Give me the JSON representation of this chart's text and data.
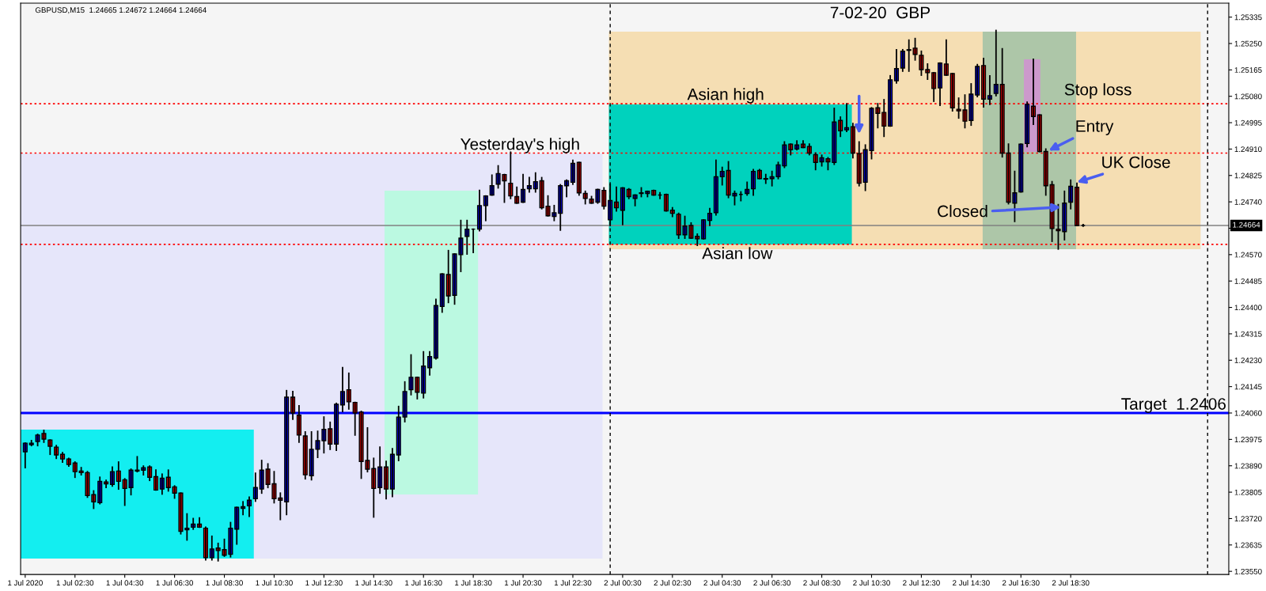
{
  "chart_data": {
    "type": "candlestick",
    "title": "7-02-20  GBP",
    "x": [
      "2020-07-01T00:30",
      "2020-07-01T00:45",
      "2020-07-01T01:00",
      "2020-07-01T01:15",
      "2020-07-01T01:30",
      "2020-07-01T01:45",
      "2020-07-01T02:00",
      "2020-07-01T02:15",
      "2020-07-01T02:30",
      "2020-07-01T02:45",
      "2020-07-01T03:00",
      "2020-07-01T03:15",
      "2020-07-01T03:30",
      "2020-07-01T03:45",
      "2020-07-01T04:00",
      "2020-07-01T04:15",
      "2020-07-01T04:30",
      "2020-07-01T04:45",
      "2020-07-01T05:00",
      "2020-07-01T05:15",
      "2020-07-01T05:30",
      "2020-07-01T05:45",
      "2020-07-01T06:00",
      "2020-07-01T06:15",
      "2020-07-01T06:30",
      "2020-07-01T06:45",
      "2020-07-01T07:00",
      "2020-07-01T07:15",
      "2020-07-01T07:30",
      "2020-07-01T07:45",
      "2020-07-01T08:00",
      "2020-07-01T08:15",
      "2020-07-01T08:30",
      "2020-07-01T08:45",
      "2020-07-01T09:00",
      "2020-07-01T09:15",
      "2020-07-01T09:30",
      "2020-07-01T09:45",
      "2020-07-01T10:00",
      "2020-07-01T10:15",
      "2020-07-01T10:30",
      "2020-07-01T10:45",
      "2020-07-01T11:00",
      "2020-07-01T11:15",
      "2020-07-01T11:30",
      "2020-07-01T11:45",
      "2020-07-01T12:00",
      "2020-07-01T12:15",
      "2020-07-01T12:30",
      "2020-07-01T12:45",
      "2020-07-01T13:00",
      "2020-07-01T13:15",
      "2020-07-01T13:30",
      "2020-07-01T13:45",
      "2020-07-01T14:00",
      "2020-07-01T14:15",
      "2020-07-01T14:30",
      "2020-07-01T14:45",
      "2020-07-01T15:00",
      "2020-07-01T15:15",
      "2020-07-01T15:30",
      "2020-07-01T15:45",
      "2020-07-01T16:00",
      "2020-07-01T16:15",
      "2020-07-01T16:30",
      "2020-07-01T16:45",
      "2020-07-01T17:00",
      "2020-07-01T17:15",
      "2020-07-01T17:30",
      "2020-07-01T17:45",
      "2020-07-01T18:00",
      "2020-07-01T18:15",
      "2020-07-01T18:30",
      "2020-07-01T18:45",
      "2020-07-01T19:00",
      "2020-07-01T19:15",
      "2020-07-01T19:30",
      "2020-07-01T19:45",
      "2020-07-01T20:00",
      "2020-07-01T20:15",
      "2020-07-01T20:30",
      "2020-07-01T20:45",
      "2020-07-01T21:00",
      "2020-07-01T21:15",
      "2020-07-01T21:30",
      "2020-07-01T21:45",
      "2020-07-01T22:00",
      "2020-07-01T22:15",
      "2020-07-01T22:30",
      "2020-07-01T22:45",
      "2020-07-01T23:00",
      "2020-07-01T23:15",
      "2020-07-01T23:30",
      "2020-07-01T23:45",
      "2020-07-02T00:00",
      "2020-07-02T00:15",
      "2020-07-02T00:30",
      "2020-07-02T00:45",
      "2020-07-02T01:00",
      "2020-07-02T01:15",
      "2020-07-02T01:30",
      "2020-07-02T01:45",
      "2020-07-02T02:00",
      "2020-07-02T02:15",
      "2020-07-02T02:30",
      "2020-07-02T02:45",
      "2020-07-02T03:00",
      "2020-07-02T03:15",
      "2020-07-02T03:30",
      "2020-07-02T03:45",
      "2020-07-02T04:00",
      "2020-07-02T04:15",
      "2020-07-02T04:30",
      "2020-07-02T04:45",
      "2020-07-02T05:00",
      "2020-07-02T05:15",
      "2020-07-02T05:30",
      "2020-07-02T05:45",
      "2020-07-02T06:00",
      "2020-07-02T06:15",
      "2020-07-02T06:30",
      "2020-07-02T06:45",
      "2020-07-02T07:00",
      "2020-07-02T07:15",
      "2020-07-02T07:30",
      "2020-07-02T07:45",
      "2020-07-02T08:00",
      "2020-07-02T08:15",
      "2020-07-02T08:30",
      "2020-07-02T08:45",
      "2020-07-02T09:00",
      "2020-07-02T09:15",
      "2020-07-02T09:30",
      "2020-07-02T09:45",
      "2020-07-02T10:00",
      "2020-07-02T10:15",
      "2020-07-02T10:30",
      "2020-07-02T10:45",
      "2020-07-02T11:00",
      "2020-07-02T11:15",
      "2020-07-02T11:30",
      "2020-07-02T11:45",
      "2020-07-02T12:00",
      "2020-07-02T12:15",
      "2020-07-02T12:30",
      "2020-07-02T12:45",
      "2020-07-02T13:00",
      "2020-07-02T13:15",
      "2020-07-02T13:30",
      "2020-07-02T13:45",
      "2020-07-02T14:00",
      "2020-07-02T14:15",
      "2020-07-02T14:30",
      "2020-07-02T14:45",
      "2020-07-02T15:00",
      "2020-07-02T15:15",
      "2020-07-02T15:30",
      "2020-07-02T15:45",
      "2020-07-02T16:00",
      "2020-07-02T16:15",
      "2020-07-02T16:30",
      "2020-07-02T16:45",
      "2020-07-02T17:00",
      "2020-07-02T17:15",
      "2020-07-02T17:30",
      "2020-07-02T17:45",
      "2020-07-02T18:00",
      "2020-07-02T18:15",
      "2020-07-02T18:30",
      "2020-07-02T18:45",
      "2020-07-02T19:00"
    ],
    "ohlc": [
      [
        1.23935,
        1.23963,
        1.23884,
        1.23963
      ],
      [
        1.23958,
        1.23971,
        1.23955,
        1.23963
      ],
      [
        1.23968,
        1.23991,
        1.23955,
        1.23989
      ],
      [
        1.23994,
        1.24004,
        1.23966,
        1.23976
      ],
      [
        1.23973,
        1.23973,
        1.23927,
        1.23953
      ],
      [
        1.2395,
        1.23955,
        1.23914,
        1.23925
      ],
      [
        1.23927,
        1.23932,
        1.23902,
        1.23912
      ],
      [
        1.23912,
        1.23914,
        1.23889,
        1.23894
      ],
      [
        1.23899,
        1.23902,
        1.23853,
        1.23871
      ],
      [
        1.23873,
        1.23884,
        1.23861,
        1.23868
      ],
      [
        1.23868,
        1.23871,
        1.23789,
        1.23794
      ],
      [
        1.23797,
        1.23809,
        1.23753,
        1.23774
      ],
      [
        1.23771,
        1.23853,
        1.23768,
        1.2384
      ],
      [
        1.23838,
        1.23843,
        1.2382,
        1.23832
      ],
      [
        1.2383,
        1.23886,
        1.23825,
        1.23871
      ],
      [
        1.23873,
        1.23902,
        1.23815,
        1.2384
      ],
      [
        1.23845,
        1.23848,
        1.23763,
        1.23817
      ],
      [
        1.2382,
        1.23879,
        1.23797,
        1.23876
      ],
      [
        1.23876,
        1.23919,
        1.23871,
        1.23873
      ],
      [
        1.23876,
        1.23889,
        1.23861,
        1.23884
      ],
      [
        1.23886,
        1.23889,
        1.23843,
        1.23853
      ],
      [
        1.23855,
        1.23876,
        1.23812,
        1.23812
      ],
      [
        1.23815,
        1.23863,
        1.23799,
        1.2385
      ],
      [
        1.23853,
        1.23876,
        1.23809,
        1.2382
      ],
      [
        1.23822,
        1.23825,
        1.23786,
        1.23802
      ],
      [
        1.23802,
        1.23802,
        1.23671,
        1.23679
      ],
      [
        1.23684,
        1.23735,
        1.23651,
        1.23689
      ],
      [
        1.23692,
        1.2372,
        1.23686,
        1.23702
      ],
      [
        1.23702,
        1.23722,
        1.23692,
        1.23692
      ],
      [
        1.23689,
        1.23692,
        1.23587,
        1.23594
      ],
      [
        1.23594,
        1.23663,
        1.23587,
        1.23622
      ],
      [
        1.23625,
        1.2364,
        1.23584,
        1.23617
      ],
      [
        1.2362,
        1.23653,
        1.23599,
        1.23602
      ],
      [
        1.23605,
        1.23707,
        1.23597,
        1.23689
      ],
      [
        1.23686,
        1.23756,
        1.23638,
        1.23756
      ],
      [
        1.23753,
        1.23774,
        1.23733,
        1.23758
      ],
      [
        1.23761,
        1.23789,
        1.23727,
        1.23779
      ],
      [
        1.23784,
        1.23866,
        1.23776,
        1.2382
      ],
      [
        1.23815,
        1.23907,
        1.23802,
        1.23876
      ],
      [
        1.23879,
        1.23896,
        1.2382,
        1.2383
      ],
      [
        1.23832,
        1.23871,
        1.23771,
        1.23784
      ],
      [
        1.23786,
        1.23802,
        1.23717,
        1.23779
      ],
      [
        1.23774,
        1.24132,
        1.23733,
        1.24111
      ],
      [
        1.24111,
        1.24129,
        1.2404,
        1.2406
      ],
      [
        1.24053,
        1.24083,
        1.23966,
        1.23989
      ],
      [
        1.23986,
        1.23999,
        1.23848,
        1.23861
      ],
      [
        1.23858,
        1.23999,
        1.23845,
        1.23943
      ],
      [
        1.23943,
        1.24001,
        1.23917,
        1.23971
      ],
      [
        1.23971,
        1.24047,
        1.23932,
        1.24007
      ],
      [
        1.24009,
        1.2403,
        1.23943,
        1.2396
      ],
      [
        1.2396,
        1.24091,
        1.2394,
        1.24088
      ],
      [
        1.24086,
        1.24206,
        1.24065,
        1.24129
      ],
      [
        1.24135,
        1.24188,
        1.24073,
        1.24096
      ],
      [
        1.24094,
        1.24094,
        1.23989,
        1.2406
      ],
      [
        1.24063,
        1.24065,
        1.2385,
        1.23904
      ],
      [
        1.23907,
        1.24012,
        1.23871,
        1.23879
      ],
      [
        1.23881,
        1.23914,
        1.23725,
        1.23817
      ],
      [
        1.2382,
        1.2395,
        1.23802,
        1.23886
      ],
      [
        1.23886,
        1.23904,
        1.23784,
        1.23815
      ],
      [
        1.23815,
        1.23945,
        1.23791,
        1.23927
      ],
      [
        1.23925,
        1.24081,
        1.23907,
        1.24047
      ],
      [
        1.24047,
        1.2416,
        1.24032,
        1.24129
      ],
      [
        1.24135,
        1.24247,
        1.24119,
        1.24175
      ],
      [
        1.24175,
        1.24175,
        1.24106,
        1.24127
      ],
      [
        1.24124,
        1.24257,
        1.24109,
        1.24211
      ],
      [
        1.24206,
        1.24257,
        1.24183,
        1.24242
      ],
      [
        1.24237,
        1.24426,
        1.24234,
        1.24406
      ],
      [
        1.24403,
        1.24508,
        1.24385,
        1.24508
      ],
      [
        1.24506,
        1.24583,
        1.24416,
        1.24437
      ],
      [
        1.24439,
        1.24572,
        1.24411,
        1.24572
      ],
      [
        1.2457,
        1.2468,
        1.24516,
        1.24623
      ],
      [
        1.24629,
        1.2468,
        1.24572,
        1.24652
      ],
      [
        1.24652,
        1.24652,
        1.24577,
        1.24652
      ],
      [
        1.24652,
        1.24777,
        1.24647,
        1.24728
      ],
      [
        1.24728,
        1.24759,
        1.2468,
        1.24759
      ],
      [
        1.24762,
        1.24826,
        1.24762,
        1.24792
      ],
      [
        1.24797,
        1.24856,
        1.24785,
        1.24831
      ],
      [
        1.24828,
        1.24828,
        1.24739,
        1.24808
      ],
      [
        1.248,
        1.249,
        1.24751,
        1.24759
      ],
      [
        1.24757,
        1.24787,
        1.24736,
        1.24736
      ],
      [
        1.24739,
        1.24828,
        1.24739,
        1.2478
      ],
      [
        1.24782,
        1.24818,
        1.24772,
        1.24792
      ],
      [
        1.24782,
        1.24833,
        1.24772,
        1.24805
      ],
      [
        1.24808,
        1.24818,
        1.24718,
        1.24721
      ],
      [
        1.24726,
        1.24759,
        1.24695,
        1.24695
      ],
      [
        1.24693,
        1.24728,
        1.2468,
        1.24705
      ],
      [
        1.24703,
        1.24795,
        1.24649,
        1.24792
      ],
      [
        1.24792,
        1.2481,
        1.24757,
        1.24808
      ],
      [
        1.24803,
        1.24874,
        1.24797,
        1.24864
      ],
      [
        1.24867,
        1.24867,
        1.24762,
        1.24769
      ],
      [
        1.24767,
        1.24774,
        1.24734,
        1.24751
      ],
      [
        1.24749,
        1.24757,
        1.24736,
        1.24736
      ],
      [
        1.24739,
        1.2478,
        1.24736,
        1.2478
      ],
      [
        1.24777,
        1.24785,
        1.24718,
        1.24726
      ],
      [
        1.24682,
        1.24797,
        1.24664,
        1.24744
      ],
      [
        1.24739,
        1.24787,
        1.24711,
        1.24721
      ],
      [
        1.24713,
        1.24785,
        1.24667,
        1.24785
      ],
      [
        1.2478,
        1.24782,
        1.24751,
        1.24757
      ],
      [
        1.24751,
        1.24762,
        1.24728,
        1.24762
      ],
      [
        1.24767,
        1.24785,
        1.24757,
        1.24769
      ],
      [
        1.24767,
        1.24774,
        1.24757,
        1.24774
      ],
      [
        1.24777,
        1.24777,
        1.24762,
        1.24762
      ],
      [
        1.24762,
        1.24769,
        1.24751,
        1.24762
      ],
      [
        1.24764,
        1.24764,
        1.24711,
        1.24711
      ],
      [
        1.24713,
        1.24721,
        1.24693,
        1.24703
      ],
      [
        1.247,
        1.24703,
        1.24623,
        1.24634
      ],
      [
        1.24634,
        1.24693,
        1.24623,
        1.24662
      ],
      [
        1.24664,
        1.24672,
        1.24623,
        1.24623
      ],
      [
        1.24629,
        1.24636,
        1.246,
        1.24621
      ],
      [
        1.24621,
        1.24682,
        1.24621,
        1.24682
      ],
      [
        1.2468,
        1.24718,
        1.24664,
        1.24703
      ],
      [
        1.24705,
        1.24874,
        1.24698,
        1.24821
      ],
      [
        1.24821,
        1.24851,
        1.24795,
        1.24838
      ],
      [
        1.24841,
        1.24869,
        1.24754,
        1.24762
      ],
      [
        1.24759,
        1.24774,
        1.24731,
        1.24767
      ],
      [
        1.24764,
        1.24772,
        1.24744,
        1.24764
      ],
      [
        1.24767,
        1.24803,
        1.24762,
        1.2478
      ],
      [
        1.24782,
        1.24844,
        1.24762,
        1.24838
      ],
      [
        1.24841,
        1.24844,
        1.24815,
        1.24815
      ],
      [
        1.24813,
        1.24828,
        1.248,
        1.24815
      ],
      [
        1.24815,
        1.24838,
        1.24792,
        1.24821
      ],
      [
        1.24821,
        1.24867,
        1.24815,
        1.24859
      ],
      [
        1.24856,
        1.24933,
        1.24851,
        1.24923
      ],
      [
        1.24926,
        1.24926,
        1.24892,
        1.24908
      ],
      [
        1.2491,
        1.24936,
        1.24908,
        1.24923
      ],
      [
        1.24926,
        1.24936,
        1.24915,
        1.24915
      ],
      [
        1.24918,
        1.24926,
        1.24892,
        1.24897
      ],
      [
        1.24892,
        1.24897,
        1.24844,
        1.24867
      ],
      [
        1.24869,
        1.2489,
        1.24856,
        1.24882
      ],
      [
        1.24879,
        1.24882,
        1.24844,
        1.24869
      ],
      [
        1.24867,
        1.25041,
        1.24861,
        1.24997
      ],
      [
        1.25002,
        1.25013,
        1.24951,
        1.24969
      ],
      [
        1.24972,
        1.25056,
        1.24967,
        1.24979
      ],
      [
        1.24982,
        1.24992,
        1.24882,
        1.24897
      ],
      [
        1.24895,
        1.24933,
        1.24792,
        1.248
      ],
      [
        1.24803,
        1.24923,
        1.24777,
        1.24908
      ],
      [
        1.24905,
        1.25043,
        1.24879,
        1.25041
      ],
      [
        1.25043,
        1.25056,
        1.24979,
        1.25025
      ],
      [
        1.25028,
        1.25069,
        1.24951,
        1.24984
      ],
      [
        1.24984,
        1.25146,
        1.24984,
        1.25133
      ],
      [
        1.2513,
        1.2523,
        1.25123,
        1.25169
      ],
      [
        1.25171,
        1.2523,
        1.25161,
        1.25225
      ],
      [
        1.25228,
        1.25261,
        1.25161,
        1.2523
      ],
      [
        1.25235,
        1.25266,
        1.25197,
        1.25215
      ],
      [
        1.25212,
        1.25225,
        1.25148,
        1.25166
      ],
      [
        1.25166,
        1.25184,
        1.25135,
        1.25156
      ],
      [
        1.25156,
        1.25156,
        1.25064,
        1.25105
      ],
      [
        1.25107,
        1.25187,
        1.25051,
        1.25187
      ],
      [
        1.25184,
        1.25261,
        1.25148,
        1.25148
      ],
      [
        1.25153,
        1.25153,
        1.25033,
        1.25043
      ],
      [
        1.25038,
        1.25074,
        1.2501,
        1.25033
      ],
      [
        1.25036,
        1.25084,
        1.24979,
        1.25
      ],
      [
        1.25002,
        1.2512,
        1.24987,
        1.25087
      ],
      [
        1.25084,
        1.25182,
        1.25079,
        1.25176
      ],
      [
        1.25179,
        1.25202,
        1.25046,
        1.25071
      ],
      [
        1.25071,
        1.25146,
        1.25054,
        1.25082
      ],
      [
        1.25089,
        1.25292,
        1.25082,
        1.25118
      ],
      [
        1.25118,
        1.25233,
        1.24885,
        1.24897
      ],
      [
        1.24897,
        1.24926,
        1.24734,
        1.24739
      ],
      [
        1.24736,
        1.24838,
        1.24677,
        1.24769
      ],
      [
        1.24772,
        1.24926,
        1.24772,
        1.24926
      ],
      [
        1.24928,
        1.25061,
        1.24918,
        1.25054
      ],
      [
        1.25048,
        1.25199,
        1.2499,
        1.25015
      ],
      [
        1.2502,
        1.2502,
        1.24902,
        1.24902
      ],
      [
        1.24902,
        1.2491,
        1.24762,
        1.24792
      ],
      [
        1.24795,
        1.24805,
        1.24613,
        1.24654
      ],
      [
        1.24652,
        1.24731,
        1.24588,
        1.24647
      ],
      [
        1.24644,
        1.24774,
        1.24618,
        1.24736
      ],
      [
        1.24739,
        1.2481,
        1.24718,
        1.2479
      ],
      [
        1.24787,
        1.248,
        1.24664,
        1.24664
      ],
      [
        1.24664,
        1.24667,
        1.24662,
        1.24664
      ]
    ],
    "colors": [
      "#0000ff",
      "#0000ff",
      "#0000ff",
      "#ff0000",
      "#ff0000",
      "#ff0000",
      "#ff0000",
      "#ff0000",
      "#ff0000",
      "#ff0000",
      "#ff0000",
      "#ff0000",
      "#0000ff",
      "#ff0000",
      "#0000ff",
      "#ff0000",
      "#ff0000",
      "#0000ff",
      "#ff0000",
      "#0000ff",
      "#ff0000",
      "#ff0000",
      "#0000ff",
      "#ff0000",
      "#ff0000",
      "#ff0000",
      "#0000ff",
      "#0000ff",
      "#ff0000",
      "#ff0000",
      "#0000ff",
      "#ff0000",
      "#ff0000",
      "#0000ff",
      "#0000ff",
      "#0000ff",
      "#0000ff",
      "#0000ff",
      "#0000ff",
      "#ff0000",
      "#ff0000",
      "#ff0000",
      "#0000ff",
      "#ff0000",
      "#ff0000",
      "#ff0000",
      "#0000ff",
      "#0000ff",
      "#0000ff",
      "#ff0000",
      "#0000ff",
      "#0000ff",
      "#ff0000",
      "#ff0000",
      "#ff0000",
      "#ff0000",
      "#ff0000",
      "#0000ff",
      "#ff0000",
      "#0000ff",
      "#0000ff",
      "#0000ff",
      "#0000ff",
      "#ff0000",
      "#0000ff",
      "#0000ff",
      "#0000ff",
      "#0000ff",
      "#ff0000",
      "#0000ff",
      "#0000ff",
      "#0000ff",
      "#000000",
      "#0000ff",
      "#0000ff",
      "#0000ff",
      "#0000ff",
      "#ff0000",
      "#ff0000",
      "#ff0000",
      "#0000ff",
      "#0000ff",
      "#0000ff",
      "#ff0000",
      "#ff0000",
      "#0000ff",
      "#0000ff",
      "#0000ff",
      "#0000ff",
      "#ff0000",
      "#ff0000",
      "#ff0000",
      "#0000ff",
      "#ff0000",
      "#0000ff",
      "#ff0000",
      "#0000ff",
      "#ff0000",
      "#0000ff",
      "#0000ff",
      "#0000ff",
      "#ff0000",
      "#000000",
      "#ff0000",
      "#ff0000",
      "#ff0000",
      "#0000ff",
      "#ff0000",
      "#ff0000",
      "#0000ff",
      "#0000ff",
      "#0000ff",
      "#0000ff",
      "#ff0000",
      "#0000ff",
      "#000000",
      "#0000ff",
      "#0000ff",
      "#ff0000",
      "#0000ff",
      "#0000ff",
      "#0000ff",
      "#0000ff",
      "#ff0000",
      "#0000ff",
      "#ff0000",
      "#ff0000",
      "#ff0000",
      "#0000ff",
      "#ff0000",
      "#0000ff",
      "#ff0000",
      "#0000ff",
      "#ff0000",
      "#ff0000",
      "#0000ff",
      "#0000ff",
      "#ff0000",
      "#ff0000",
      "#0000ff",
      "#0000ff",
      "#0000ff",
      "#0000ff",
      "#ff0000",
      "#ff0000",
      "#ff0000",
      "#ff0000",
      "#0000ff",
      "#ff0000",
      "#ff0000",
      "#ff0000",
      "#ff0000",
      "#0000ff",
      "#0000ff",
      "#ff0000",
      "#0000ff",
      "#0000ff",
      "#ff0000",
      "#ff0000",
      "#0000ff",
      "#0000ff",
      "#0000ff",
      "#ff0000",
      "#ff0000",
      "#ff0000",
      "#ff0000",
      "#ff0000",
      "#0000ff",
      "#0000ff",
      "#ff0000",
      "#000000"
    ],
    "xlim": [
      "2020-07-01T00:19",
      "2020-07-03T00:51"
    ],
    "xticks": [
      {
        "value": "2020-07-01T00:30",
        "label": "1 Jul 2020"
      },
      {
        "value": "2020-07-01T02:30",
        "label": "1 Jul 02:30"
      },
      {
        "value": "2020-07-01T04:30",
        "label": "1 Jul 04:30"
      },
      {
        "value": "2020-07-01T06:30",
        "label": "1 Jul 06:30"
      },
      {
        "value": "2020-07-01T08:30",
        "label": "1 Jul 08:30"
      },
      {
        "value": "2020-07-01T10:30",
        "label": "1 Jul 10:30"
      },
      {
        "value": "2020-07-01T12:30",
        "label": "1 Jul 12:30"
      },
      {
        "value": "2020-07-01T14:30",
        "label": "1 Jul 14:30"
      },
      {
        "value": "2020-07-01T16:30",
        "label": "1 Jul 16:30"
      },
      {
        "value": "2020-07-01T18:30",
        "label": "1 Jul 18:30"
      },
      {
        "value": "2020-07-01T20:30",
        "label": "1 Jul 20:30"
      },
      {
        "value": "2020-07-01T22:30",
        "label": "1 Jul 22:30"
      },
      {
        "value": "2020-07-02T00:30",
        "label": "2 Jul 00:30"
      },
      {
        "value": "2020-07-02T02:30",
        "label": "2 Jul 02:30"
      },
      {
        "value": "2020-07-02T04:30",
        "label": "2 Jul 04:30"
      },
      {
        "value": "2020-07-02T06:30",
        "label": "2 Jul 06:30"
      },
      {
        "value": "2020-07-02T08:30",
        "label": "2 Jul 08:30"
      },
      {
        "value": "2020-07-02T10:30",
        "label": "2 Jul 10:30"
      },
      {
        "value": "2020-07-02T12:30",
        "label": "2 Jul 12:30"
      },
      {
        "value": "2020-07-02T14:30",
        "label": "2 Jul 14:30"
      },
      {
        "value": "2020-07-02T16:30",
        "label": "2 Jul 16:30"
      },
      {
        "value": "2020-07-02T18:30",
        "label": "2 Jul 18:30"
      }
    ],
    "ylim": [
      1.2354,
      1.2538
    ],
    "yticks": [
      1.25335,
      {
        "value": 1.2525,
        "label": "1.25250"
      },
      1.25165,
      {
        "value": 1.2508,
        "label": "1.25080"
      },
      1.24995,
      {
        "value": 1.2491,
        "label": "1.24910"
      },
      1.24825,
      {
        "value": 1.2474,
        "label": "1.24740"
      },
      {
        "value": 1.24655,
        "label": null
      },
      {
        "value": 1.2457,
        "label": "1.24570"
      },
      1.24485,
      {
        "value": 1.244,
        "label": "1.24400"
      },
      1.24315,
      {
        "value": 1.2423,
        "label": "1.24230"
      },
      1.24145,
      {
        "value": 1.2406,
        "label": "1.24060"
      },
      1.23975,
      {
        "value": 1.2389,
        "label": "1.23890"
      },
      1.23805,
      {
        "value": 1.2372,
        "label": "1.23720"
      },
      1.23635,
      {
        "value": 1.2355,
        "label": "1.23550"
      }
    ],
    "ref_lines": [
      {
        "axis": "y",
        "value": 1.2406,
        "label": "Target  1.2406",
        "color": "#0000ff",
        "line_style": "solid"
      },
      {
        "axis": "y",
        "value": 1.24664,
        "label": "1.24664",
        "color": "#808080",
        "line_style": "solid"
      },
      {
        "axis": "y",
        "value": 1.25056,
        "color": "#ff0000",
        "line_style": "dotted"
      },
      {
        "axis": "y",
        "value": 1.24897,
        "color": "#ff0000",
        "line_style": "dotted"
      },
      {
        "axis": "y",
        "value": 1.24603,
        "color": "#ff0000",
        "line_style": "dotted"
      },
      {
        "axis": "x",
        "value": "2020-07-02T00:00",
        "color": "#000000",
        "line_style": "dashed"
      },
      {
        "axis": "x",
        "value": "2020-07-03T00:00",
        "color": "#000000",
        "line_style": "dashed"
      }
    ],
    "annotations": [
      "GBPUSD,M15  1.24665 1.24672 1.24664 1.24664",
      "Yesterday's high",
      "Asian high",
      "Asian low",
      "Stop loss",
      {
        "text": "Entry",
        "x": "2020-07-02T17:37",
        "y": 1.24905
      },
      {
        "text": "UK Close",
        "x": "2020-07-02T18:45",
        "y": 1.24803
      },
      {
        "text": "Closed",
        "x": "2020-07-02T18:06",
        "y": 1.24723
      }
    ],
    "grid": false
  }
}
